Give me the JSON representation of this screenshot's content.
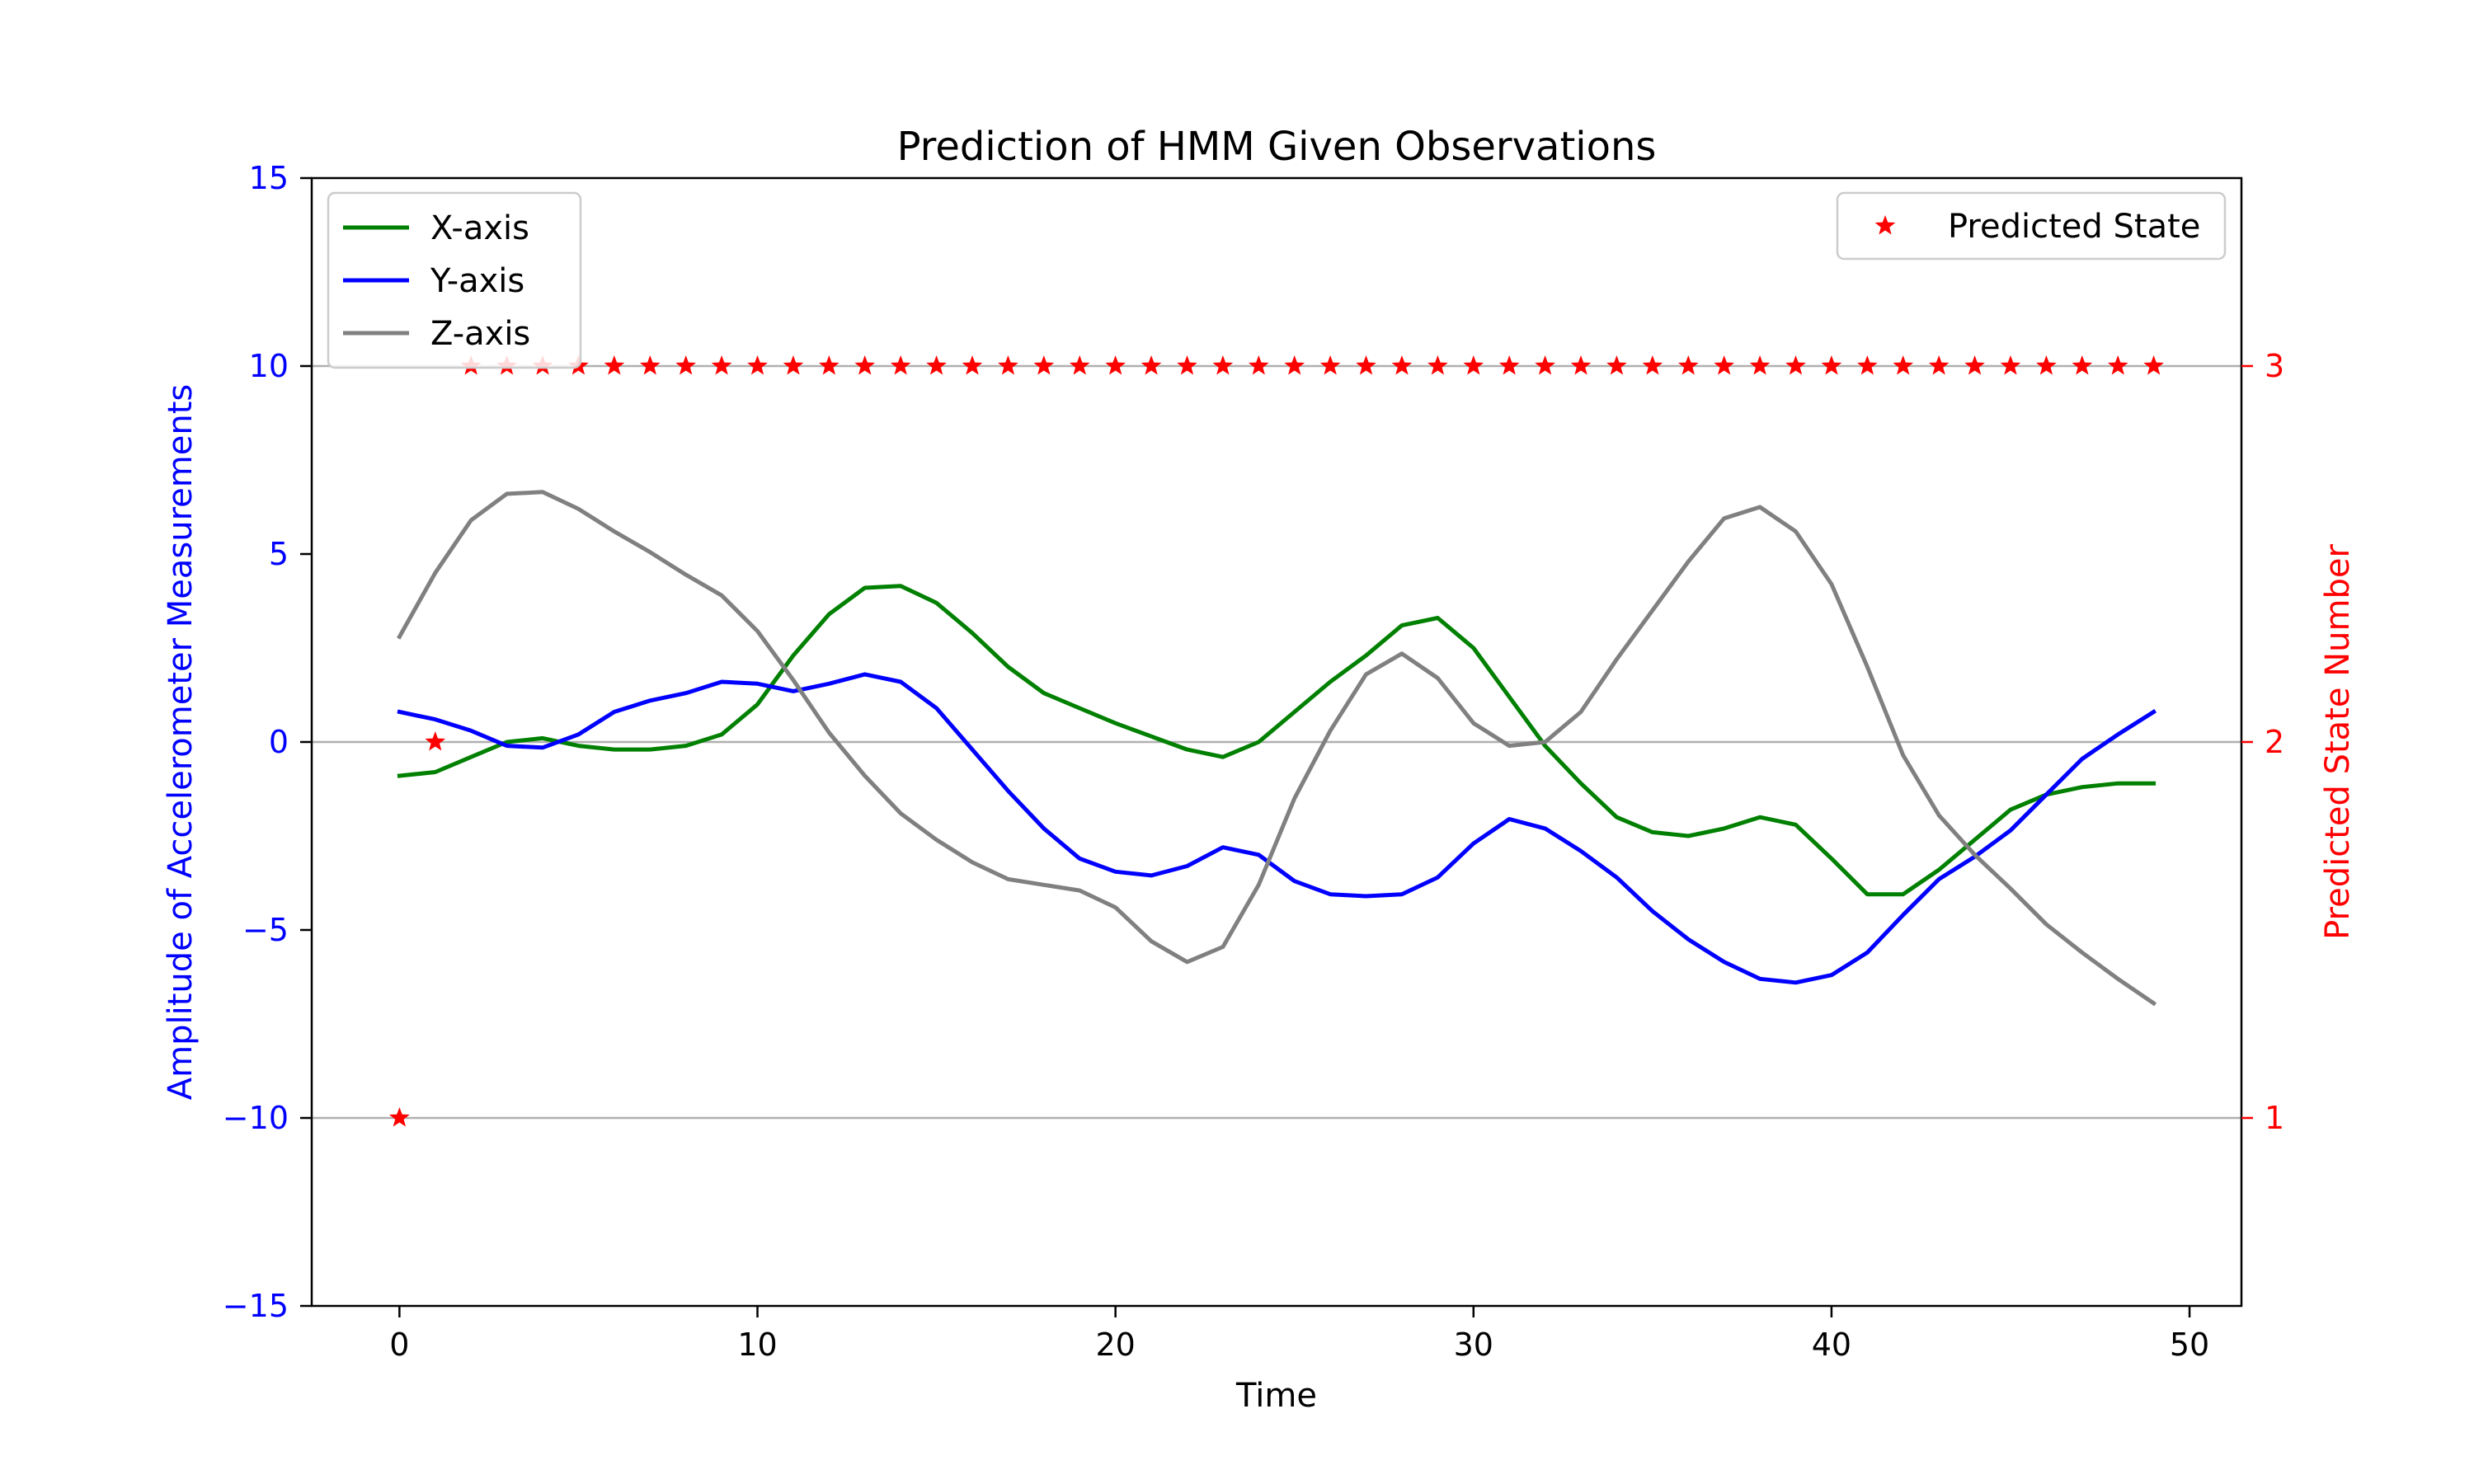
{
  "chart_data": {
    "type": "line",
    "title": "Prediction of HMM Given Observations",
    "xlabel": "Time",
    "ylabel_left": "Amplitude of Accelerometer Measurements",
    "ylabel_right": "Predicted State Number",
    "xlim": [
      -2.45,
      51.45
    ],
    "ylim_left": [
      -15,
      15
    ],
    "ylim_right": [
      0.5,
      3.5
    ],
    "xticks": [
      0,
      10,
      20,
      30,
      40,
      50
    ],
    "yticks_left": [
      -15,
      -10,
      -5,
      0,
      5,
      10,
      15
    ],
    "yticks_right": [
      1,
      2,
      3
    ],
    "grid": "horizontal lines at right-axis state ticks",
    "legend_left": "upper-left",
    "legend_right": "upper-right",
    "colors": {
      "x_axis": "#008000",
      "y_axis": "#0000ff",
      "z_axis": "#808080",
      "state": "#ff0000",
      "left_axis_text": "#0000ff",
      "right_axis_text": "#ff0000",
      "grid": "#b0b0b0"
    },
    "x": [
      0,
      1,
      2,
      3,
      4,
      5,
      6,
      7,
      8,
      9,
      10,
      11,
      12,
      13,
      14,
      15,
      16,
      17,
      18,
      19,
      20,
      21,
      22,
      23,
      24,
      25,
      26,
      27,
      28,
      29,
      30,
      31,
      32,
      33,
      34,
      35,
      36,
      37,
      38,
      39,
      40,
      41,
      42,
      43,
      44,
      45,
      46,
      47,
      48,
      49
    ],
    "series": [
      {
        "name": "X-axis",
        "color": "#008000",
        "axis": "left",
        "values": [
          -0.9,
          -0.8,
          -0.4,
          0.0,
          0.1,
          -0.1,
          -0.2,
          -0.2,
          -0.1,
          0.2,
          1.0,
          2.3,
          3.4,
          4.1,
          4.15,
          3.7,
          2.9,
          2.0,
          1.3,
          0.9,
          0.5,
          0.15,
          -0.2,
          -0.4,
          0.0,
          0.8,
          1.6,
          2.3,
          3.1,
          3.3,
          2.5,
          1.2,
          -0.1,
          -1.1,
          -2.0,
          -2.4,
          -2.5,
          -2.3,
          -2.0,
          -2.2,
          -3.1,
          -4.05,
          -4.05,
          -3.4,
          -2.6,
          -1.8,
          -1.4,
          -1.2,
          -1.1,
          -1.1
        ]
      },
      {
        "name": "Y-axis",
        "color": "#0000ff",
        "axis": "left",
        "values": [
          0.8,
          0.6,
          0.3,
          -0.1,
          -0.15,
          0.2,
          0.8,
          1.1,
          1.3,
          1.6,
          1.55,
          1.35,
          1.55,
          1.8,
          1.6,
          0.9,
          -0.2,
          -1.3,
          -2.3,
          -3.1,
          -3.45,
          -3.55,
          -3.3,
          -2.8,
          -3.0,
          -3.7,
          -4.05,
          -4.1,
          -4.05,
          -3.6,
          -2.7,
          -2.05,
          -2.3,
          -2.9,
          -3.6,
          -4.5,
          -5.25,
          -5.85,
          -6.3,
          -6.4,
          -6.2,
          -5.6,
          -4.6,
          -3.65,
          -3.05,
          -2.35,
          -1.4,
          -0.45,
          0.2,
          0.8
        ]
      },
      {
        "name": "Z-axis",
        "color": "#808080",
        "axis": "left",
        "values": [
          2.8,
          4.5,
          5.9,
          6.6,
          6.65,
          6.2,
          5.6,
          5.05,
          4.45,
          3.9,
          2.95,
          1.65,
          0.25,
          -0.9,
          -1.9,
          -2.6,
          -3.2,
          -3.65,
          -3.8,
          -3.95,
          -4.4,
          -5.3,
          -5.85,
          -5.45,
          -3.8,
          -1.5,
          0.3,
          1.8,
          2.35,
          1.7,
          0.5,
          -0.1,
          0.0,
          0.8,
          2.2,
          3.5,
          4.8,
          5.95,
          6.25,
          5.6,
          4.2,
          2.0,
          -0.35,
          -1.95,
          -3.0,
          -3.9,
          -4.85,
          -5.6,
          -6.3,
          -6.95
        ]
      }
    ],
    "state_series": {
      "name": "Predicted State",
      "color": "#ff0000",
      "marker": "star",
      "axis": "right",
      "values": [
        1,
        2,
        3,
        3,
        3,
        3,
        3,
        3,
        3,
        3,
        3,
        3,
        3,
        3,
        3,
        3,
        3,
        3,
        3,
        3,
        3,
        3,
        3,
        3,
        3,
        3,
        3,
        3,
        3,
        3,
        3,
        3,
        3,
        3,
        3,
        3,
        3,
        3,
        3,
        3,
        3,
        3,
        3,
        3,
        3,
        3,
        3,
        3,
        3,
        3
      ]
    }
  }
}
